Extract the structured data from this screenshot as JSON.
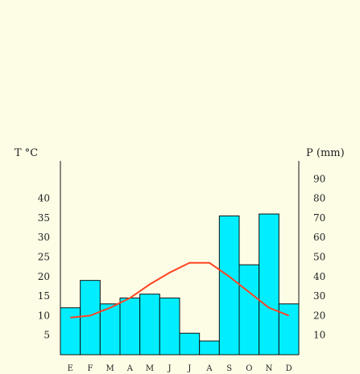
{
  "colors": {
    "background": "#fdfde6",
    "bars": "#00eeff",
    "bar_stroke": "#111111",
    "temperature_line": "#ff4422",
    "axis": "#111111"
  },
  "chart_data": {
    "type": "bar",
    "categories": [
      "E",
      "F",
      "M",
      "A",
      "M",
      "J",
      "J",
      "A",
      "S",
      "O",
      "N",
      "D"
    ],
    "series": [
      {
        "type": "bar",
        "axis": "right",
        "values": [
          24,
          38,
          26,
          29,
          31,
          29,
          11,
          7,
          71,
          46,
          72,
          26
        ]
      },
      {
        "type": "line",
        "axis": "left",
        "values": [
          9.5,
          10,
          12,
          14.5,
          18,
          21,
          23.5,
          23.5,
          20,
          16,
          12,
          10
        ]
      }
    ],
    "left_axis": {
      "label": "T °C",
      "ticks": [
        5,
        10,
        15,
        20,
        25,
        30,
        35,
        40
      ],
      "ylim": [
        0,
        48
      ]
    },
    "right_axis": {
      "label": "P (mm)",
      "ticks": [
        10,
        20,
        30,
        40,
        50,
        60,
        70,
        80,
        90
      ],
      "ylim": [
        0,
        96
      ]
    },
    "grid": false,
    "legend": "none"
  }
}
